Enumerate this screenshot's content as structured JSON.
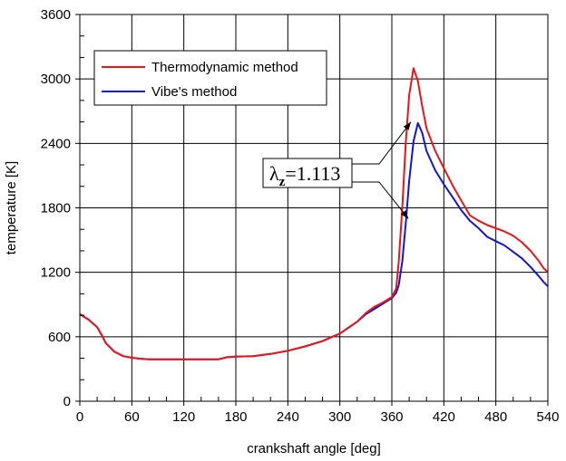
{
  "chart_data": {
    "type": "line",
    "xlabel": "crankshaft angle [deg]",
    "ylabel": "temperature [K]",
    "xlim": [
      0,
      540
    ],
    "ylim": [
      0,
      3600
    ],
    "xticks": [
      "0",
      "60",
      "120",
      "180",
      "240",
      "300",
      "360",
      "420",
      "480",
      "540"
    ],
    "yticks": [
      "0",
      "600",
      "1200",
      "1800",
      "2400",
      "3000",
      "3600"
    ],
    "grid": true,
    "legend_position": "top-left",
    "series": [
      {
        "name": "Thermodynamic method",
        "color": "#e8161b",
        "x": [
          0,
          10,
          20,
          25,
          30,
          40,
          50,
          60,
          70,
          80,
          100,
          120,
          140,
          160,
          165,
          170,
          180,
          200,
          220,
          240,
          260,
          280,
          300,
          320,
          330,
          340,
          350,
          360,
          365,
          368,
          372,
          376,
          380,
          385,
          390,
          395,
          400,
          410,
          420,
          430,
          440,
          450,
          460,
          470,
          480,
          490,
          500,
          510,
          520,
          530,
          535,
          540
        ],
        "y": [
          810,
          760,
          690,
          620,
          540,
          460,
          420,
          405,
          395,
          390,
          390,
          390,
          390,
          390,
          400,
          410,
          415,
          420,
          440,
          470,
          510,
          560,
          630,
          740,
          820,
          880,
          920,
          970,
          1050,
          1300,
          1800,
          2400,
          2850,
          3100,
          2980,
          2750,
          2540,
          2330,
          2170,
          2010,
          1870,
          1730,
          1680,
          1640,
          1610,
          1580,
          1540,
          1480,
          1400,
          1300,
          1240,
          1200
        ]
      },
      {
        "name": "Vibe's method",
        "color": "#1414d6",
        "x": [
          0,
          10,
          20,
          25,
          30,
          40,
          50,
          60,
          70,
          80,
          100,
          120,
          140,
          160,
          165,
          170,
          180,
          200,
          220,
          240,
          260,
          280,
          300,
          320,
          330,
          340,
          350,
          360,
          365,
          368,
          372,
          376,
          380,
          385,
          390,
          395,
          400,
          410,
          420,
          430,
          440,
          450,
          460,
          470,
          480,
          490,
          500,
          510,
          520,
          530,
          535,
          540
        ],
        "y": [
          810,
          760,
          690,
          620,
          540,
          460,
          420,
          405,
          395,
          390,
          390,
          390,
          390,
          390,
          400,
          410,
          415,
          420,
          440,
          470,
          510,
          560,
          630,
          740,
          810,
          860,
          910,
          960,
          1010,
          1080,
          1300,
          1650,
          2050,
          2420,
          2590,
          2500,
          2330,
          2150,
          2020,
          1900,
          1780,
          1680,
          1610,
          1530,
          1490,
          1450,
          1390,
          1330,
          1250,
          1160,
          1110,
          1070
        ]
      }
    ],
    "annotations": [
      {
        "text_main": "λ",
        "text_sub": "z",
        "text_rest": "=1.113",
        "arrow_targets": [
          [
            382,
            2600
          ],
          [
            379,
            1700
          ]
        ]
      }
    ]
  }
}
